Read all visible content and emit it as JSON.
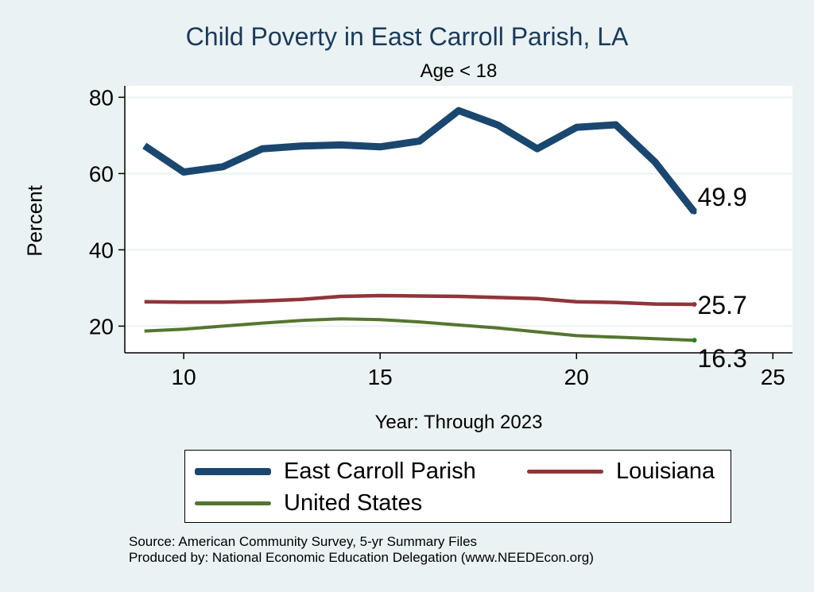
{
  "header": {
    "title": "Child Poverty in East Carroll Parish, LA",
    "subtitle": "Age < 18"
  },
  "axes": {
    "ylabel": "Percent",
    "xlabel": "Year: Through 2023"
  },
  "legend": {
    "items": [
      "East Carroll Parish",
      "Louisiana",
      "United States"
    ]
  },
  "footer": {
    "source": "Source: American Community Survey, 5-yr Summary Files",
    "produced": "Produced by: National Economic Education Delegation (www.NEEDEcon.org)"
  },
  "chart_data": {
    "type": "line",
    "title": "Child Poverty in East Carroll Parish, LA",
    "subtitle": "Age < 18",
    "xlabel": "Year: Through 2023",
    "ylabel": "Percent",
    "x": [
      9,
      10,
      11,
      12,
      13,
      14,
      15,
      16,
      17,
      18,
      19,
      20,
      21,
      22,
      23
    ],
    "xlim": [
      8.5,
      25.5
    ],
    "ylim": [
      13,
      83
    ],
    "xticks": [
      10,
      15,
      20,
      25
    ],
    "yticks": [
      20,
      40,
      60,
      80
    ],
    "grid": true,
    "legend_position": "bottom",
    "series": [
      {
        "name": "East Carroll Parish",
        "color": "#1a476f",
        "values": [
          67.3,
          60.4,
          61.8,
          66.5,
          67.2,
          67.5,
          67.0,
          68.5,
          76.5,
          72.7,
          66.5,
          72.1,
          72.8,
          63.0,
          49.9
        ],
        "end_label": "49.9"
      },
      {
        "name": "Louisiana",
        "color": "#90353b",
        "values": [
          26.4,
          26.3,
          26.3,
          26.6,
          27.0,
          27.8,
          28.0,
          27.9,
          27.8,
          27.5,
          27.2,
          26.4,
          26.2,
          25.8,
          25.7
        ],
        "end_label": "25.7"
      },
      {
        "name": "United States",
        "color": "#55752f",
        "values": [
          18.7,
          19.2,
          20.0,
          20.8,
          21.5,
          21.9,
          21.7,
          21.1,
          20.3,
          19.5,
          18.5,
          17.5,
          17.1,
          16.7,
          16.3
        ],
        "end_label": "16.3"
      }
    ]
  }
}
